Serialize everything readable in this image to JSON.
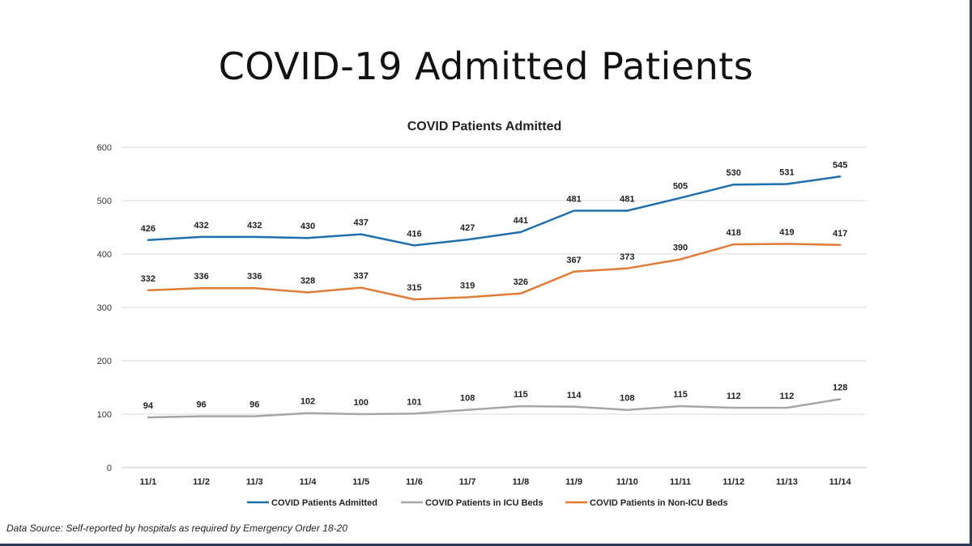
{
  "slide": {
    "title": "COVID-19 Admitted Patients",
    "footnote": "Data Source: Self-reported by hospitals as required by Emergency Order 18-20"
  },
  "chart_data": {
    "type": "line",
    "title": "COVID Patients Admitted",
    "xlabel": "",
    "ylabel": "",
    "ylim": [
      0,
      600
    ],
    "yticks": [
      0,
      100,
      200,
      300,
      400,
      500,
      600
    ],
    "grid": true,
    "legend_position": "bottom",
    "categories": [
      "11/1",
      "11/2",
      "11/3",
      "11/4",
      "11/5",
      "11/6",
      "11/7",
      "11/8",
      "11/9",
      "11/10",
      "11/11",
      "11/12",
      "11/13",
      "11/14"
    ],
    "series": [
      {
        "name": "COVID Patients Admitted",
        "color": "#1f6fad",
        "values": [
          426,
          432,
          432,
          430,
          437,
          416,
          427,
          441,
          481,
          481,
          505,
          530,
          531,
          545
        ]
      },
      {
        "name": "COVID Patients in ICU Beds",
        "color": "#a6a6a6",
        "values": [
          94,
          96,
          96,
          102,
          100,
          101,
          108,
          115,
          114,
          108,
          115,
          112,
          112,
          128
        ]
      },
      {
        "name": "COVID Patients in Non-ICU Beds",
        "color": "#e07b39",
        "values": [
          332,
          336,
          336,
          328,
          337,
          315,
          319,
          326,
          367,
          373,
          390,
          418,
          419,
          417
        ]
      }
    ]
  }
}
